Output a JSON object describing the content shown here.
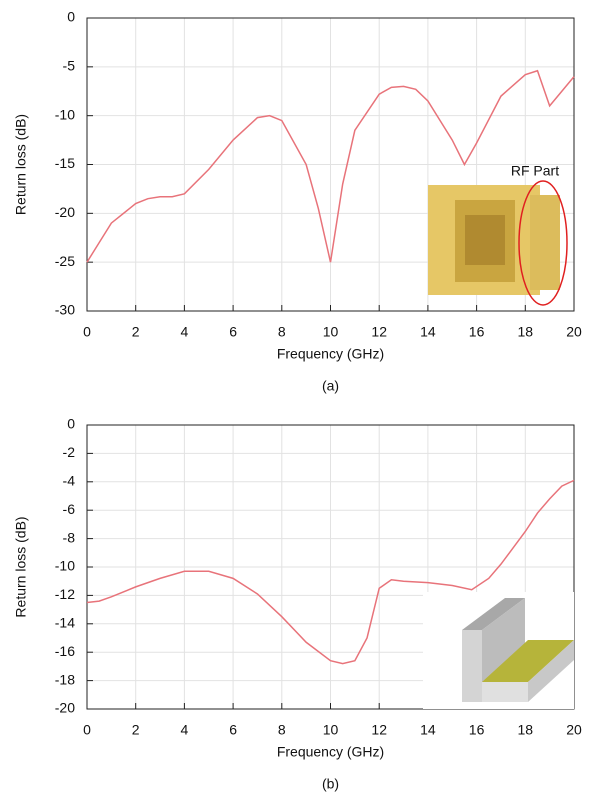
{
  "chart_data": [
    {
      "type": "line",
      "y_label": "Return loss (dB)",
      "x_label": "Frequency (GHz)",
      "caption": "(a)",
      "annotation": "RF Part",
      "xlim": [
        0,
        20
      ],
      "xticks": [
        0,
        2,
        4,
        6,
        8,
        10,
        12,
        14,
        16,
        18,
        20
      ],
      "ylim": [
        -30,
        0
      ],
      "yticks": [
        0,
        -5,
        -10,
        -15,
        -20,
        -25,
        -30
      ],
      "grid": true,
      "x": [
        0,
        0.5,
        1,
        2,
        2.5,
        3,
        3.5,
        4,
        5,
        6,
        7,
        7.5,
        8,
        9,
        9.5,
        10,
        10.5,
        11,
        12,
        12.5,
        13,
        13.5,
        14,
        15,
        15.5,
        16,
        17,
        18,
        18.5,
        19,
        19.5,
        20
      ],
      "series": [
        {
          "color": "#e8737a",
          "values": [
            -25,
            -23,
            -21,
            -19,
            -18.5,
            -18.3,
            -18.3,
            -18,
            -15.5,
            -12.5,
            -10.2,
            -10,
            -10.5,
            -15,
            -19.5,
            -25,
            -17,
            -11.5,
            -7.8,
            -7.1,
            -7,
            -7.3,
            -8.5,
            -12.5,
            -15,
            -12.8,
            -8,
            -5.8,
            -5.4,
            -9,
            -7.5,
            -6
          ]
        }
      ]
    },
    {
      "type": "line",
      "y_label": "Return loss (dB)",
      "x_label": "Frequency (GHz)",
      "caption": "(b)",
      "xlim": [
        0,
        20
      ],
      "xticks": [
        0,
        2,
        4,
        6,
        8,
        10,
        12,
        14,
        16,
        18,
        20
      ],
      "ylim": [
        -20,
        0
      ],
      "yticks": [
        0,
        -2,
        -4,
        -6,
        -8,
        -10,
        -12,
        -14,
        -16,
        -18,
        -20
      ],
      "grid": true,
      "x": [
        0,
        0.5,
        1,
        2,
        3,
        4,
        5,
        6,
        7,
        8,
        9,
        10,
        10.5,
        11,
        11.5,
        12,
        12.5,
        13,
        14,
        15,
        15.8,
        16.5,
        17,
        18,
        18.5,
        19,
        19.5,
        20
      ],
      "series": [
        {
          "color": "#e8737a",
          "values": [
            -12.5,
            -12.4,
            -12.1,
            -11.4,
            -10.8,
            -10.3,
            -10.3,
            -10.8,
            -11.9,
            -13.5,
            -15.3,
            -16.6,
            -16.8,
            -16.6,
            -15,
            -11.5,
            -10.9,
            -11,
            -11.1,
            -11.3,
            -11.6,
            -10.8,
            -9.8,
            -7.5,
            -6.2,
            -5.2,
            -4.3,
            -3.9
          ]
        }
      ]
    }
  ]
}
